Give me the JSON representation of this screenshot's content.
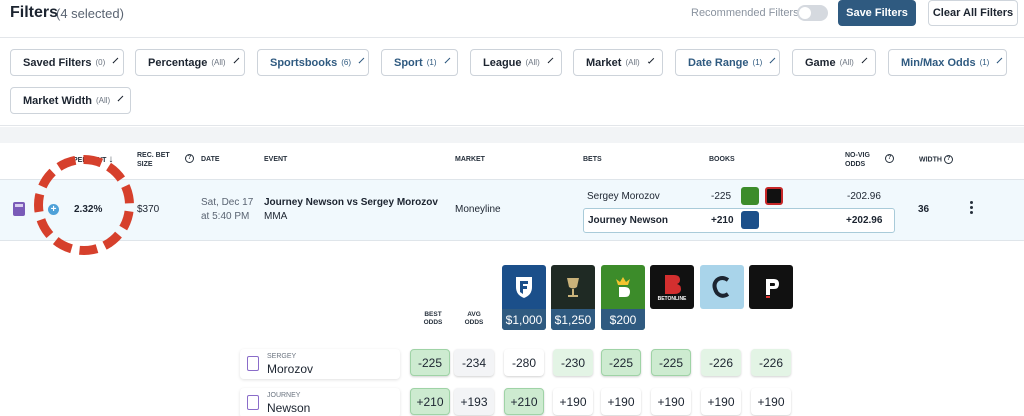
{
  "header": {
    "title": "Filters",
    "selected_count": "(4 selected)",
    "recommended_label": "Recommended Filters",
    "save_label": "Save Filters",
    "clear_label": "Clear All Filters"
  },
  "filters": [
    {
      "label": "Saved Filters",
      "count": "(0)",
      "selected": false
    },
    {
      "label": "Percentage",
      "count": "(All)",
      "selected": false
    },
    {
      "label": "Sportsbooks",
      "count": "(6)",
      "selected": true
    },
    {
      "label": "Sport",
      "count": "(1)",
      "selected": true
    },
    {
      "label": "League",
      "count": "(All)",
      "selected": false
    },
    {
      "label": "Market",
      "count": "(All)",
      "selected": false
    },
    {
      "label": "Date Range",
      "count": "(1)",
      "selected": true
    },
    {
      "label": "Game",
      "count": "(All)",
      "selected": false
    },
    {
      "label": "Min/Max Odds",
      "count": "(1)",
      "selected": true
    },
    {
      "label": "Market Width",
      "count": "(All)",
      "selected": false
    }
  ],
  "table": {
    "headers": {
      "percent": "PERCENT",
      "rec_bet_1": "REC. BET",
      "rec_bet_2": "SIZE",
      "date": "DATE",
      "event": "EVENT",
      "market": "MARKET",
      "bets": "BETS",
      "books": "BOOKS",
      "novig_1": "NO-VIG",
      "novig_2": "ODDS",
      "width": "WIDTH"
    },
    "row": {
      "percent": "2.32%",
      "bet_size": "$370",
      "date_line1": "Sat, Dec 17",
      "date_line2": "at 5:40 PM",
      "event": "Journey Newson vs Sergey Morozov",
      "sport": "MMA",
      "market": "Moneyline",
      "bets": [
        {
          "name": "Sergey Morozov",
          "odds": "-225",
          "novig": "-202.96"
        },
        {
          "name": "Journey Newson",
          "odds": "+210",
          "novig": "+202.96"
        }
      ],
      "width": "36"
    }
  },
  "detail": {
    "best_odds_1": "BEST",
    "best_odds_2": "ODDS",
    "avg_odds_1": "AVG",
    "avg_odds_2": "ODDS",
    "books": [
      {
        "icon": "fanduel-icon",
        "bonus": "$1,000",
        "color": "#1b4f8a"
      },
      {
        "icon": "caesars-icon",
        "bonus": "$1,250",
        "color": "#1f2a24"
      },
      {
        "icon": "draftkings-icon",
        "bonus": "$200",
        "color": "#3c8c2a"
      },
      {
        "icon": "betonline-icon",
        "bonus": "",
        "text": "BETONLINE",
        "color": "#111111"
      },
      {
        "icon": "circa-icon",
        "bonus": "",
        "color": "#a9d4ea"
      },
      {
        "icon": "pointsbet-icon",
        "bonus": "",
        "color": "#111111"
      }
    ],
    "players": [
      {
        "first": "SERGEY",
        "last": "Morozov",
        "best": "-225",
        "avg": "-234",
        "odds": [
          "-280",
          "-230",
          "-225",
          "-225",
          "-226",
          "-226"
        ]
      },
      {
        "first": "JOURNEY",
        "last": "Newson",
        "best": "+210",
        "avg": "+193",
        "odds": [
          "+210",
          "+190",
          "+190",
          "+190",
          "+190",
          "+190"
        ]
      }
    ]
  },
  "colors": {
    "primary": "#2f5a80",
    "row_highlight": "#f1f9fd",
    "best_green": "#cdebd0",
    "annotation_red": "#d6402c"
  }
}
